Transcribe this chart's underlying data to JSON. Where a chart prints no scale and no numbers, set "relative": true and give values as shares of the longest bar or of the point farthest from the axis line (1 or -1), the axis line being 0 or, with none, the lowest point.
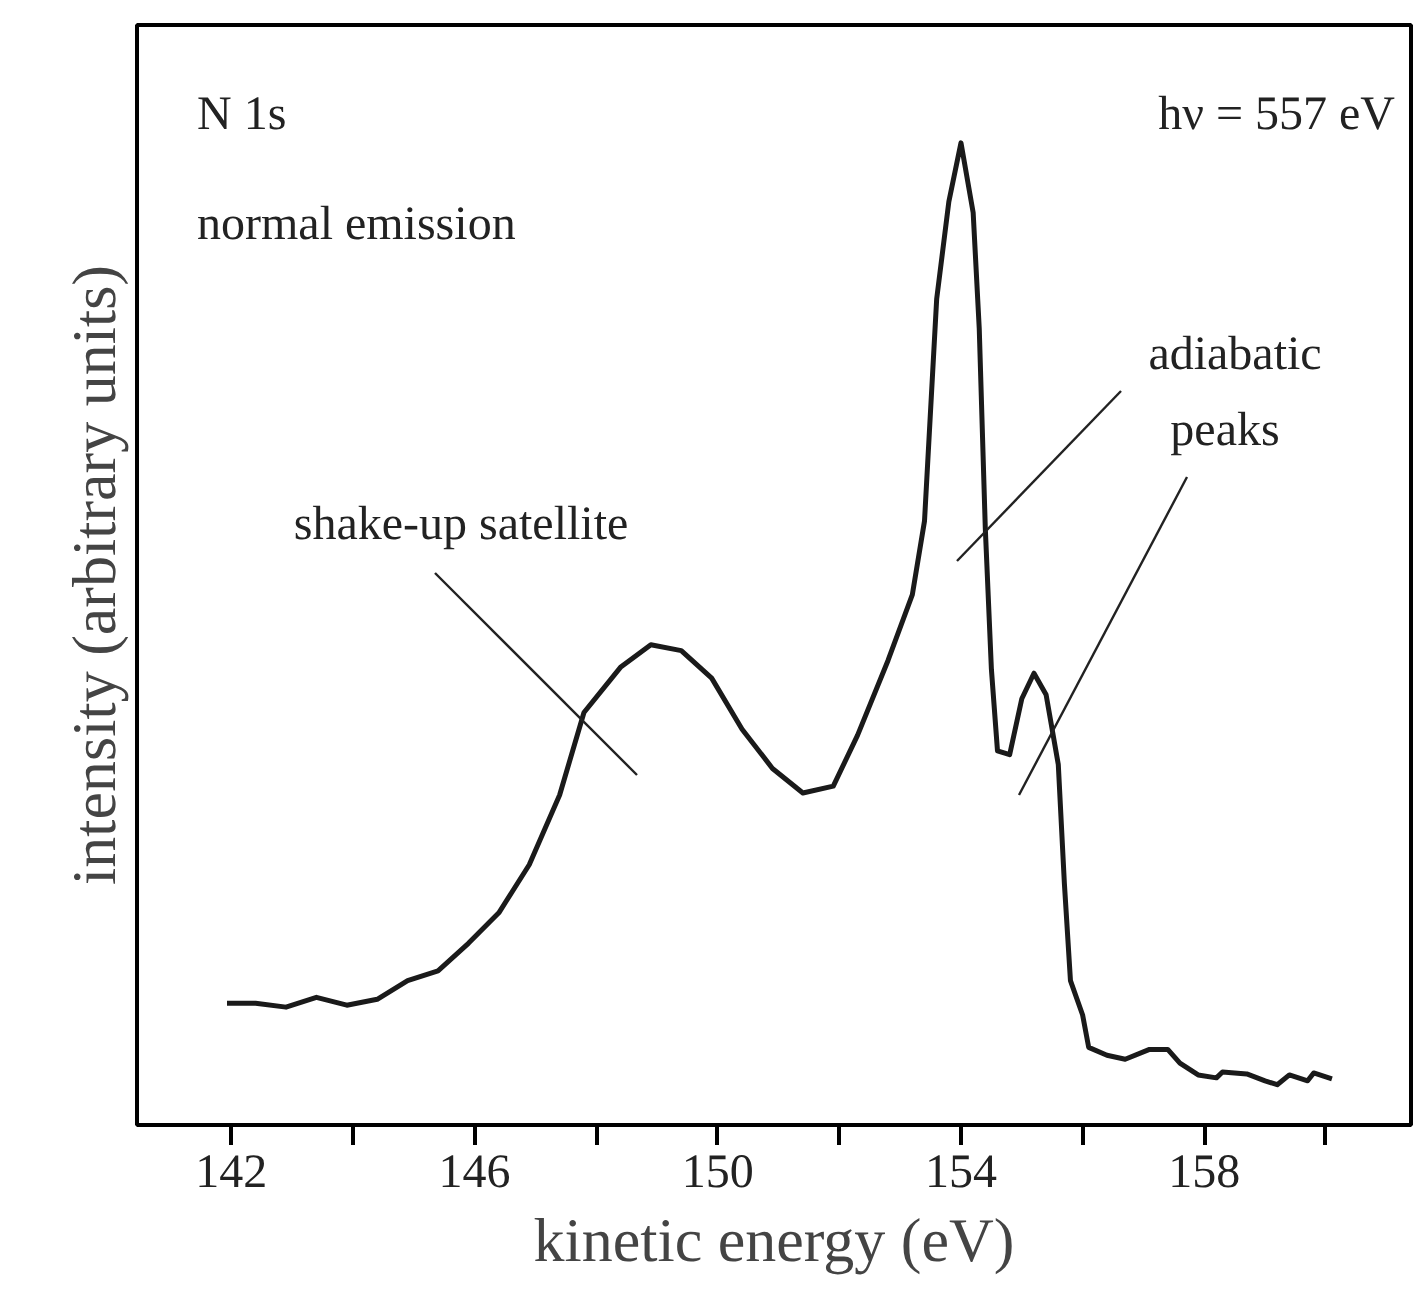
{
  "chart_data": {
    "type": "line",
    "relative": true,
    "xlabel": "kinetic energy (eV)",
    "ylabel": "intensity (arbitrary units)",
    "xlim": [
      140.45,
      161.4
    ],
    "xticks": [
      142,
      {
        "value": 144,
        "label": null
      },
      146,
      {
        "value": 148,
        "label": null
      },
      150,
      {
        "value": 152,
        "label": null
      },
      154,
      {
        "value": 156,
        "label": null
      },
      158,
      {
        "value": 160,
        "label": null
      }
    ],
    "grid": false,
    "tick_labels": "x",
    "annotations": [
      "N 1s",
      "hν = 557 eV",
      "normal emission",
      "shake-up satellite",
      "adiabatic",
      "peaks"
    ],
    "series": [
      {
        "color": "#1a1a1a",
        "x": [
          141.93,
          142.4,
          142.9,
          143.4,
          143.9,
          144.4,
          144.9,
          145.4,
          145.9,
          146.4,
          146.9,
          147.4,
          147.8,
          148.4,
          148.9,
          149.4,
          149.9,
          150.4,
          150.9,
          151.4,
          151.9,
          152.3,
          152.8,
          153.2,
          153.4,
          153.6,
          153.8,
          154.0,
          154.2,
          154.3,
          154.4,
          154.5,
          154.6,
          154.8,
          155.0,
          155.2,
          155.4,
          155.6,
          155.7,
          155.8,
          156.0,
          156.1,
          156.4,
          156.7,
          157.1,
          157.4,
          157.6,
          157.9,
          158.2,
          158.3,
          158.7,
          159.0,
          159.2,
          159.4,
          159.7,
          159.8,
          160.1
        ],
        "values": [
          0.124,
          0.124,
          0.12,
          0.13,
          0.122,
          0.128,
          0.147,
          0.157,
          0.185,
          0.216,
          0.265,
          0.336,
          0.42,
          0.466,
          0.489,
          0.483,
          0.455,
          0.403,
          0.363,
          0.338,
          0.345,
          0.397,
          0.473,
          0.54,
          0.615,
          0.841,
          0.94,
          1.0,
          0.929,
          0.811,
          0.607,
          0.464,
          0.381,
          0.377,
          0.434,
          0.46,
          0.438,
          0.367,
          0.246,
          0.147,
          0.112,
          0.079,
          0.071,
          0.067,
          0.077,
          0.077,
          0.063,
          0.051,
          0.048,
          0.054,
          0.052,
          0.045,
          0.041,
          0.051,
          0.045,
          0.053,
          0.047
        ]
      }
    ]
  }
}
